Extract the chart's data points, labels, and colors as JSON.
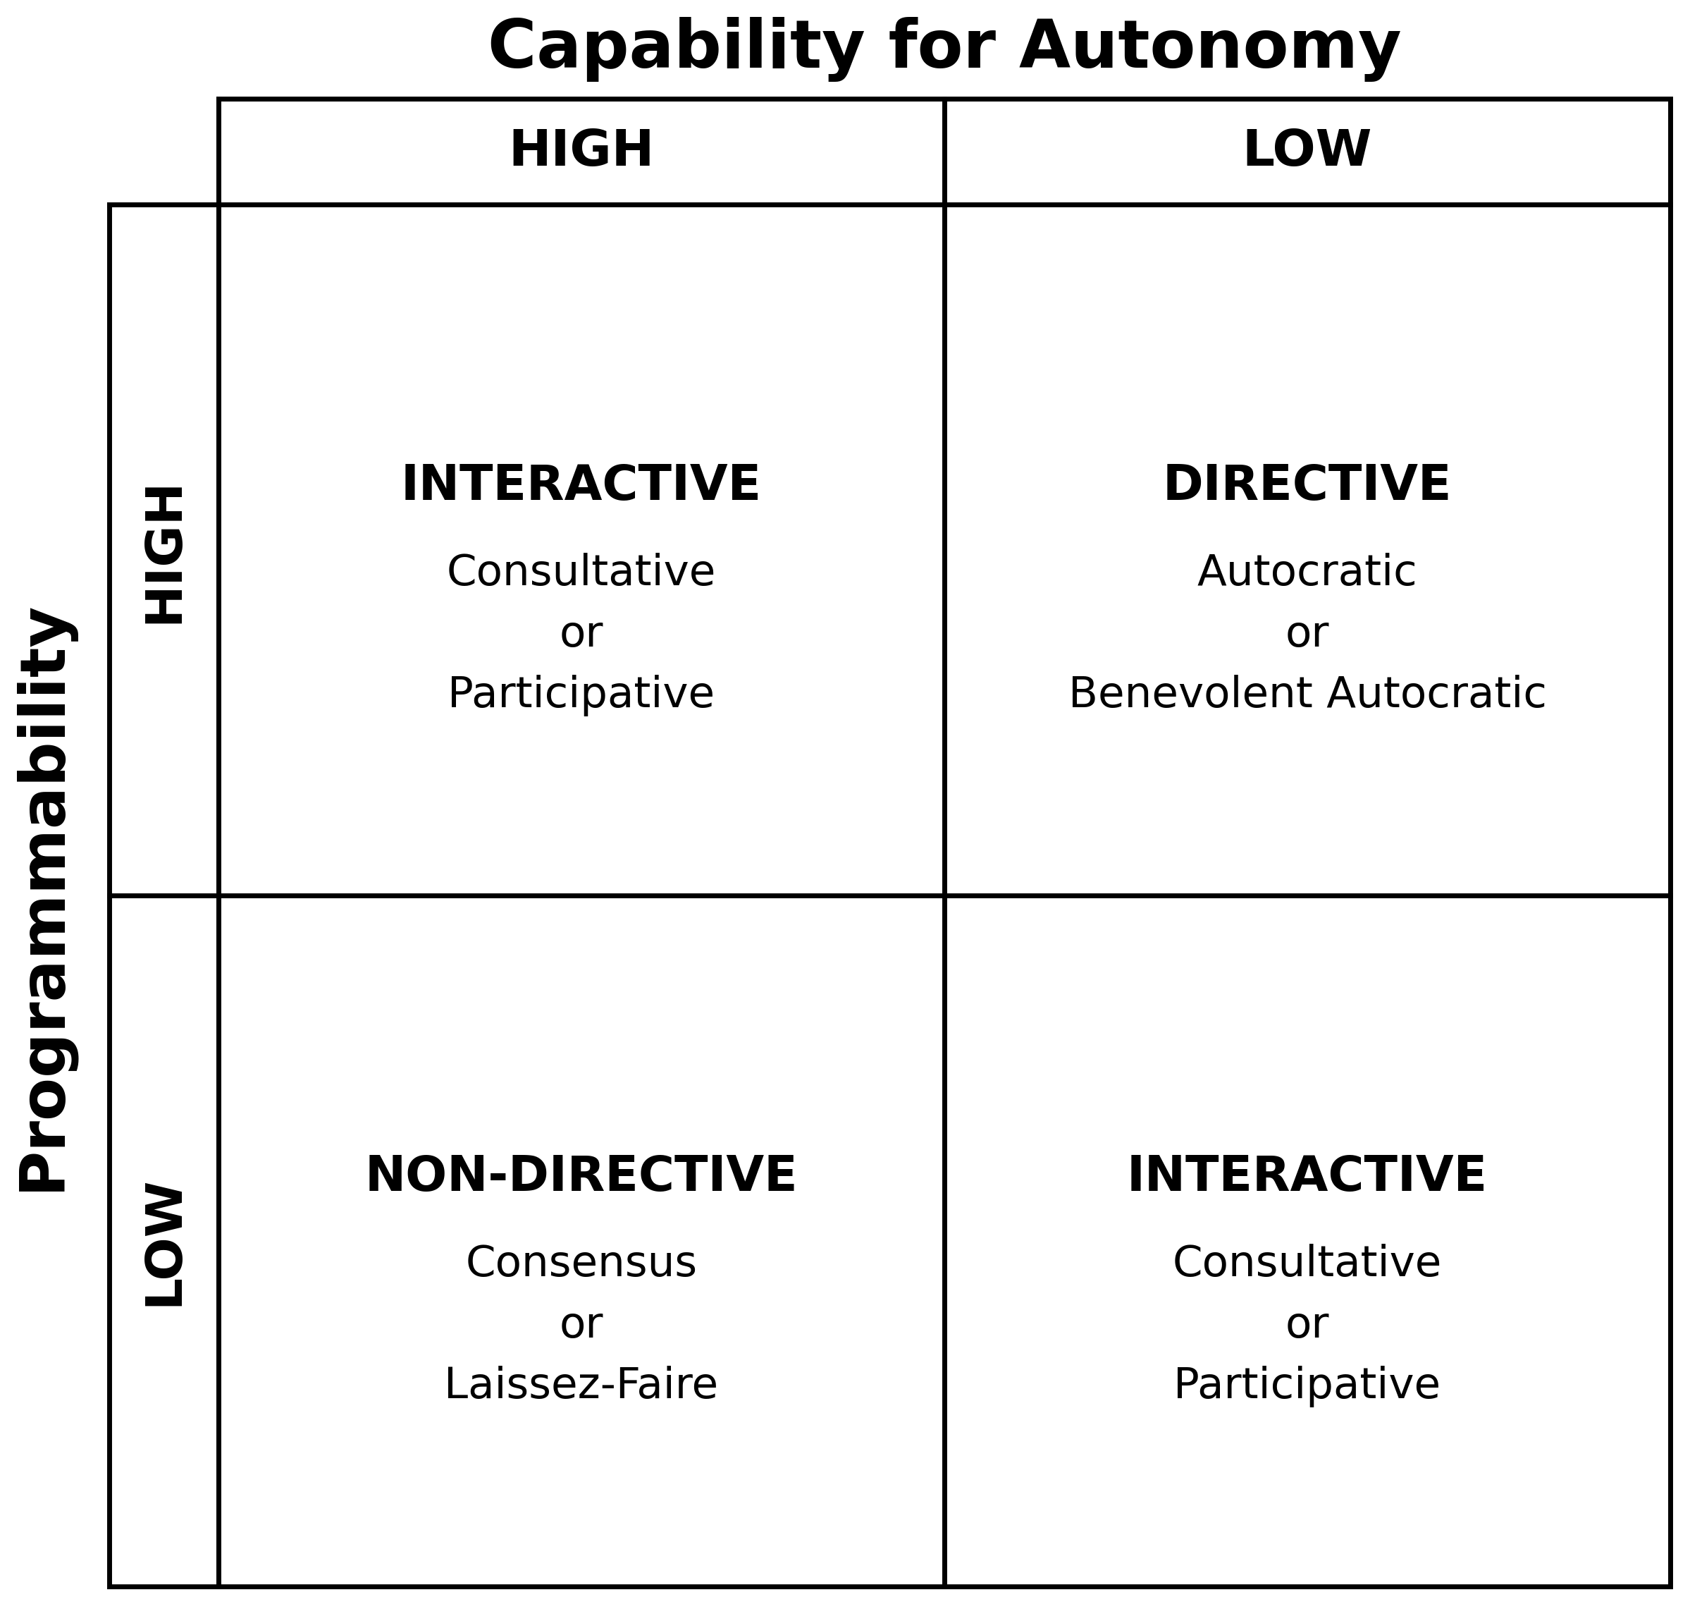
{
  "title": "Capability for Autonomy",
  "ylabel": "Programmability",
  "col_headers": [
    "HIGH",
    "LOW"
  ],
  "row_headers": [
    "HIGH",
    "LOW"
  ],
  "cells": [
    {
      "row": 0,
      "col": 0,
      "bold_text": "INTERACTIVE",
      "sub_text": "Consultative\nor\nParticipative"
    },
    {
      "row": 0,
      "col": 1,
      "bold_text": "DIRECTIVE",
      "sub_text": "Autocratic\nor\nBenevolent Autocratic"
    },
    {
      "row": 1,
      "col": 0,
      "bold_text": "NON-DIRECTIVE",
      "sub_text": "Consensus\nor\nLaissez-Faire"
    },
    {
      "row": 1,
      "col": 1,
      "bold_text": "INTERACTIVE",
      "sub_text": "Consultative\nor\nParticipative"
    }
  ],
  "title_fontsize": 68,
  "col_header_fontsize": 52,
  "row_header_fontsize": 52,
  "cell_bold_fontsize": 50,
  "cell_sub_fontsize": 44,
  "ylabel_fontsize": 64,
  "background_color": "#ffffff",
  "line_color": "#000000",
  "text_color": "#000000",
  "line_width": 5
}
